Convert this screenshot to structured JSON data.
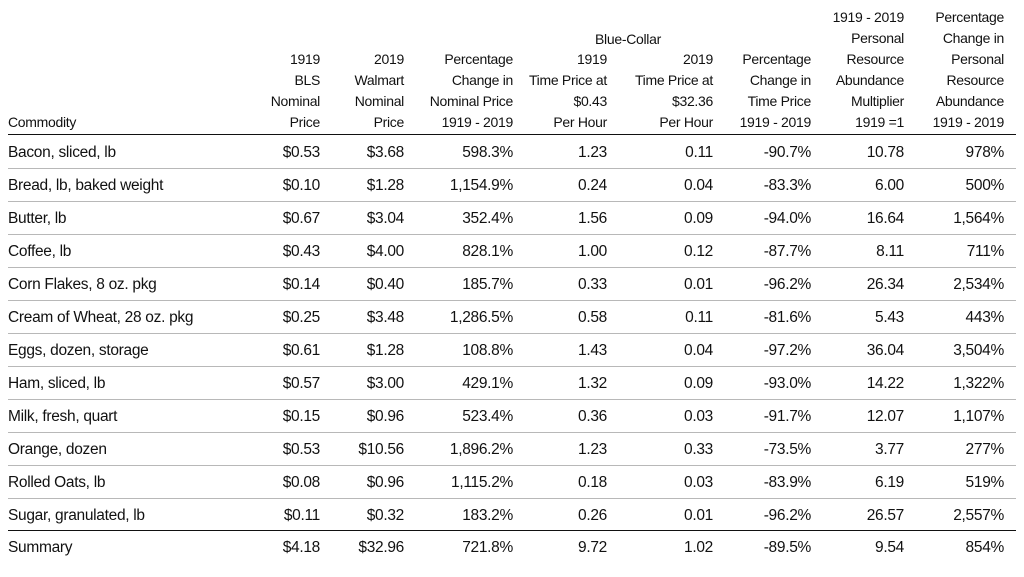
{
  "super_header": "Blue-Collar",
  "columns": [
    {
      "lines": [
        "Commodity"
      ]
    },
    {
      "lines": [
        "1919",
        "BLS",
        "Nominal",
        "Price"
      ]
    },
    {
      "lines": [
        "2019",
        "Walmart",
        "Nominal",
        "Price"
      ]
    },
    {
      "lines": [
        "Percentage",
        "Change in",
        "Nominal Price",
        "1919 - 2019"
      ]
    },
    {
      "lines": [
        "1919",
        "Time Price at",
        "$0.43",
        "Per Hour"
      ]
    },
    {
      "lines": [
        "2019",
        "Time Price at",
        "$32.36",
        "Per Hour"
      ]
    },
    {
      "lines": [
        "Percentage",
        "Change in",
        "Time Price",
        "1919 - 2019"
      ]
    },
    {
      "lines": [
        "1919 - 2019",
        "Personal",
        "Resource",
        "Abundance",
        "Multiplier",
        "1919 =1"
      ]
    },
    {
      "lines": [
        "Percentage",
        "Change in",
        "Personal",
        "Resource",
        "Abundance",
        "1919 - 2019"
      ]
    }
  ],
  "rows": [
    [
      "Bacon, sliced, lb",
      "$0.53",
      "$3.68",
      "598.3%",
      "1.23",
      "0.11",
      "-90.7%",
      "10.78",
      "978%"
    ],
    [
      "Bread, lb, baked weight",
      "$0.10",
      "$1.28",
      "1,154.9%",
      "0.24",
      "0.04",
      "-83.3%",
      "6.00",
      "500%"
    ],
    [
      "Butter, lb",
      "$0.67",
      "$3.04",
      "352.4%",
      "1.56",
      "0.09",
      "-94.0%",
      "16.64",
      "1,564%"
    ],
    [
      "Coffee, lb",
      "$0.43",
      "$4.00",
      "828.1%",
      "1.00",
      "0.12",
      "-87.7%",
      "8.11",
      "711%"
    ],
    [
      "Corn Flakes, 8 oz. pkg",
      "$0.14",
      "$0.40",
      "185.7%",
      "0.33",
      "0.01",
      "-96.2%",
      "26.34",
      "2,534%"
    ],
    [
      "Cream of Wheat, 28 oz. pkg",
      "$0.25",
      "$3.48",
      "1,286.5%",
      "0.58",
      "0.11",
      "-81.6%",
      "5.43",
      "443%"
    ],
    [
      "Eggs, dozen, storage",
      "$0.61",
      "$1.28",
      "108.8%",
      "1.43",
      "0.04",
      "-97.2%",
      "36.04",
      "3,504%"
    ],
    [
      "Ham, sliced, lb",
      "$0.57",
      "$3.00",
      "429.1%",
      "1.32",
      "0.09",
      "-93.0%",
      "14.22",
      "1,322%"
    ],
    [
      "Milk, fresh, quart",
      "$0.15",
      "$0.96",
      "523.4%",
      "0.36",
      "0.03",
      "-91.7%",
      "12.07",
      "1,107%"
    ],
    [
      "Orange, dozen",
      "$0.53",
      "$10.56",
      "1,896.2%",
      "1.23",
      "0.33",
      "-73.5%",
      "3.77",
      "277%"
    ],
    [
      "Rolled Oats, lb",
      "$0.08",
      "$0.96",
      "1,115.2%",
      "0.18",
      "0.03",
      "-83.9%",
      "6.19",
      "519%"
    ],
    [
      "Sugar, granulated, lb",
      "$0.11",
      "$0.32",
      "183.2%",
      "0.26",
      "0.01",
      "-96.2%",
      "26.57",
      "2,557%"
    ]
  ],
  "summary": [
    "Summary",
    "$4.18",
    "$32.96",
    "721.8%",
    "9.72",
    "1.02",
    "-89.5%",
    "9.54",
    "854%"
  ]
}
